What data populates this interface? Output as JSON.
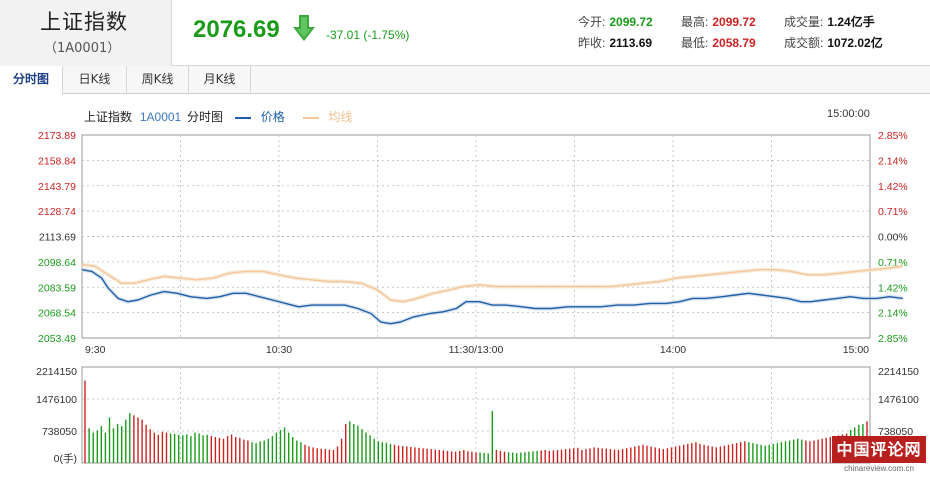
{
  "header": {
    "index_name": "上证指数",
    "index_code": "（1A0001）",
    "price": "2076.69",
    "change": "-37.01 (-1.75%)",
    "stats": [
      {
        "label": "今开:",
        "value": "2099.72",
        "color": "green"
      },
      {
        "label": "最高:",
        "value": "2099.72",
        "color": "red"
      },
      {
        "label": "成交量:",
        "value": "1.24亿手",
        "color": "black"
      },
      {
        "label": "昨收:",
        "value": "2113.69",
        "color": "black"
      },
      {
        "label": "最低:",
        "value": "2058.79",
        "color": "red"
      },
      {
        "label": "成交额:",
        "value": "1072.02亿",
        "color": "black"
      }
    ]
  },
  "tabs": [
    {
      "label": "分时图",
      "active": true
    },
    {
      "label": "日K线",
      "active": false
    },
    {
      "label": "周K线",
      "active": false
    },
    {
      "label": "月K线",
      "active": false
    }
  ],
  "legend": {
    "name": "上证指数",
    "code": "1A0001",
    "chart_label": "分时图",
    "price_label": "价格",
    "avg_label": "均线",
    "end_time": "15:00:00"
  },
  "colors": {
    "price_line": "#1f5fa8",
    "avg_line": "#f2c79a",
    "up": "#cc2222",
    "down": "#1a9b1a",
    "grid": "#bbbbbb"
  },
  "watermark": {
    "main": "中国评论网",
    "sub": "chinareview.com.cn"
  },
  "chart_data": [
    {
      "type": "line",
      "x_ticks": [
        "9:30",
        "10:30",
        "11:30/13:00",
        "14:00",
        "15:00"
      ],
      "y_ticks_left": [
        "2173.89",
        "2158.84",
        "2143.79",
        "2128.74",
        "2113.69",
        "2098.64",
        "2083.59",
        "2068.54",
        "2053.49"
      ],
      "y_ticks_right": [
        "2.85%",
        "2.14%",
        "1.42%",
        "0.71%",
        "0.00%",
        "0.71%",
        "1.42%",
        "2.14%",
        "2.85%"
      ],
      "ylim": [
        2053.49,
        2173.89
      ],
      "prev_close": 2113.69,
      "x_range": [
        0,
        240
      ],
      "series": [
        {
          "name": "价格",
          "points": [
            [
              0,
              2094
            ],
            [
              3,
              2093
            ],
            [
              6,
              2089
            ],
            [
              8,
              2083
            ],
            [
              11,
              2077
            ],
            [
              14,
              2075
            ],
            [
              17,
              2076
            ],
            [
              21,
              2079
            ],
            [
              25,
              2081
            ],
            [
              29,
              2080
            ],
            [
              33,
              2078
            ],
            [
              38,
              2077
            ],
            [
              42,
              2078
            ],
            [
              46,
              2080
            ],
            [
              50,
              2080
            ],
            [
              54,
              2078
            ],
            [
              58,
              2076
            ],
            [
              62,
              2074
            ],
            [
              66,
              2072
            ],
            [
              70,
              2073
            ],
            [
              75,
              2073
            ],
            [
              80,
              2073
            ],
            [
              84,
              2071
            ],
            [
              88,
              2068
            ],
            [
              91,
              2063
            ],
            [
              94,
              2062
            ],
            [
              97,
              2063
            ],
            [
              101,
              2066
            ],
            [
              106,
              2068
            ],
            [
              110,
              2069
            ],
            [
              114,
              2071
            ],
            [
              117,
              2075
            ],
            [
              121,
              2075
            ],
            [
              125,
              2073
            ],
            [
              129,
              2073
            ],
            [
              134,
              2072
            ],
            [
              138,
              2071
            ],
            [
              143,
              2071
            ],
            [
              148,
              2072
            ],
            [
              153,
              2072
            ],
            [
              158,
              2072
            ],
            [
              163,
              2073
            ],
            [
              168,
              2073
            ],
            [
              173,
              2074
            ],
            [
              178,
              2074
            ],
            [
              182,
              2075
            ],
            [
              186,
              2077
            ],
            [
              190,
              2077
            ],
            [
              195,
              2078
            ],
            [
              199,
              2079
            ],
            [
              203,
              2080
            ],
            [
              207,
              2079
            ],
            [
              211,
              2078
            ],
            [
              215,
              2077
            ],
            [
              219,
              2075
            ],
            [
              222,
              2075
            ],
            [
              226,
              2076
            ],
            [
              230,
              2077
            ],
            [
              234,
              2078
            ],
            [
              238,
              2077
            ],
            [
              242,
              2077
            ],
            [
              246,
              2078
            ],
            [
              250,
              2077
            ]
          ]
        },
        {
          "name": "均线",
          "points": [
            [
              0,
              2097
            ],
            [
              4,
              2096
            ],
            [
              8,
              2091
            ],
            [
              12,
              2086
            ],
            [
              16,
              2086
            ],
            [
              20,
              2088
            ],
            [
              25,
              2090
            ],
            [
              30,
              2089
            ],
            [
              35,
              2088
            ],
            [
              40,
              2089
            ],
            [
              45,
              2092
            ],
            [
              50,
              2093
            ],
            [
              55,
              2093
            ],
            [
              60,
              2091
            ],
            [
              65,
              2089
            ],
            [
              70,
              2088
            ],
            [
              75,
              2087
            ],
            [
              80,
              2087
            ],
            [
              85,
              2086
            ],
            [
              90,
              2082
            ],
            [
              94,
              2076
            ],
            [
              98,
              2075
            ],
            [
              102,
              2077
            ],
            [
              107,
              2080
            ],
            [
              112,
              2082
            ],
            [
              116,
              2084
            ],
            [
              121,
              2085
            ],
            [
              126,
              2084
            ],
            [
              131,
              2084
            ],
            [
              136,
              2084
            ],
            [
              141,
              2084
            ],
            [
              146,
              2084
            ],
            [
              151,
              2084
            ],
            [
              156,
              2084
            ],
            [
              161,
              2084
            ],
            [
              166,
              2085
            ],
            [
              171,
              2086
            ],
            [
              176,
              2087
            ],
            [
              181,
              2089
            ],
            [
              186,
              2090
            ],
            [
              191,
              2091
            ],
            [
              196,
              2092
            ],
            [
              201,
              2093
            ],
            [
              206,
              2094
            ],
            [
              211,
              2094
            ],
            [
              216,
              2093
            ],
            [
              221,
              2091
            ],
            [
              226,
              2091
            ],
            [
              231,
              2092
            ],
            [
              236,
              2093
            ],
            [
              241,
              2094
            ],
            [
              246,
              2095
            ],
            [
              250,
              2096
            ]
          ]
        }
      ]
    },
    {
      "type": "bar",
      "unit": "(手)",
      "y_ticks": [
        "2214150",
        "1476100",
        "738050",
        "0"
      ],
      "ylim": [
        0,
        2214150
      ],
      "values": [
        1900000,
        800000,
        700000,
        750000,
        850000,
        700000,
        1050000,
        800000,
        900000,
        850000,
        1000000,
        1150000,
        1100000,
        1050000,
        1000000,
        880000,
        780000,
        700000,
        650000,
        720000,
        700000,
        680000,
        670000,
        650000,
        640000,
        660000,
        620000,
        700000,
        680000,
        640000,
        650000,
        620000,
        600000,
        580000,
        560000,
        620000,
        660000,
        600000,
        580000,
        540000,
        520000,
        480000,
        460000,
        500000,
        520000,
        560000,
        620000,
        700000,
        760000,
        820000,
        700000,
        600000,
        520000,
        480000,
        420000,
        380000,
        360000,
        340000,
        330000,
        320000,
        310000,
        300000,
        380000,
        560000,
        900000,
        960000,
        900000,
        860000,
        780000,
        700000,
        640000,
        560000,
        500000,
        480000,
        470000,
        440000,
        420000,
        400000,
        390000,
        380000,
        370000,
        360000,
        350000,
        340000,
        330000,
        320000,
        310000,
        300000,
        290000,
        280000,
        270000,
        260000,
        280000,
        300000,
        270000,
        260000,
        250000,
        240000,
        230000,
        220000,
        1200000,
        300000,
        280000,
        260000,
        250000,
        240000,
        230000,
        240000,
        250000,
        260000,
        270000,
        280000,
        290000,
        300000,
        280000,
        290000,
        300000,
        310000,
        320000,
        330000,
        340000,
        350000,
        300000,
        320000,
        340000,
        360000,
        350000,
        340000,
        330000,
        320000,
        310000,
        300000,
        320000,
        340000,
        360000,
        380000,
        400000,
        420000,
        400000,
        380000,
        360000,
        340000,
        320000,
        340000,
        360000,
        380000,
        400000,
        420000,
        440000,
        460000,
        480000,
        440000,
        420000,
        400000,
        380000,
        360000,
        380000,
        400000,
        420000,
        440000,
        460000,
        480000,
        500000,
        480000,
        460000,
        440000,
        420000,
        400000,
        420000,
        440000,
        460000,
        480000,
        500000,
        520000,
        540000,
        560000,
        540000,
        520000,
        500000,
        520000,
        540000,
        560000,
        580000,
        600000,
        620000,
        640000,
        660000,
        680000,
        760000,
        820000,
        880000,
        900000,
        960000
      ]
    }
  ]
}
